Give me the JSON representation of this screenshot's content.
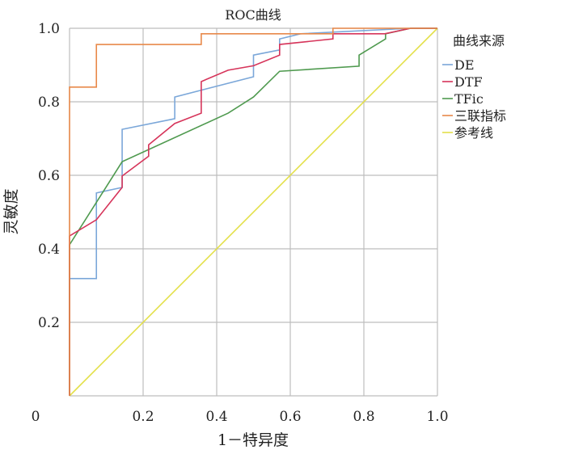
{
  "chart_data": {
    "type": "line",
    "title": "ROC曲线",
    "xlabel": "1－特异度",
    "ylabel": "灵敏度",
    "xlim": [
      0,
      1
    ],
    "ylim": [
      0,
      1
    ],
    "x_ticks": [
      "0",
      "0.2",
      "0.4",
      "0.6",
      "0.8",
      "1.0"
    ],
    "y_ticks": [
      "0.2",
      "0.4",
      "0.6",
      "0.8",
      "1.0"
    ],
    "grid": true,
    "legend_title": "曲线来源",
    "legend_position": "right",
    "series": [
      {
        "name": "DE",
        "color": "#7ba7d9",
        "points": [
          [
            0,
            0
          ],
          [
            0,
            0.319
          ],
          [
            0.073,
            0.319
          ],
          [
            0.073,
            0.552
          ],
          [
            0.143,
            0.567
          ],
          [
            0.143,
            0.725
          ],
          [
            0.286,
            0.754
          ],
          [
            0.286,
            0.813
          ],
          [
            0.5,
            0.868
          ],
          [
            0.5,
            0.927
          ],
          [
            0.571,
            0.941
          ],
          [
            0.571,
            0.971
          ],
          [
            0.628,
            0.985
          ],
          [
            0.927,
            1
          ],
          [
            1,
            1
          ]
        ]
      },
      {
        "name": "DTF",
        "color": "#d6345a",
        "points": [
          [
            0,
            0
          ],
          [
            0,
            0.435
          ],
          [
            0.073,
            0.479
          ],
          [
            0.143,
            0.567
          ],
          [
            0.143,
            0.598
          ],
          [
            0.215,
            0.652
          ],
          [
            0.215,
            0.683
          ],
          [
            0.286,
            0.741
          ],
          [
            0.358,
            0.769
          ],
          [
            0.358,
            0.855
          ],
          [
            0.431,
            0.886
          ],
          [
            0.5,
            0.898
          ],
          [
            0.571,
            0.927
          ],
          [
            0.571,
            0.956
          ],
          [
            0.716,
            0.971
          ],
          [
            0.716,
            0.985
          ],
          [
            0.857,
            0.985
          ],
          [
            0.927,
            1
          ],
          [
            1,
            1
          ]
        ]
      },
      {
        "name": "TFic",
        "color": "#4f9a4f",
        "points": [
          [
            0,
            0
          ],
          [
            0,
            0.411
          ],
          [
            0.143,
            0.637
          ],
          [
            0.431,
            0.769
          ],
          [
            0.5,
            0.813
          ],
          [
            0.571,
            0.883
          ],
          [
            0.787,
            0.897
          ],
          [
            0.787,
            0.927
          ],
          [
            0.859,
            0.971
          ],
          [
            0.859,
            0.985
          ],
          [
            0.927,
            1
          ],
          [
            1,
            1
          ]
        ]
      },
      {
        "name": "三联指标",
        "color": "#e8894a",
        "points": [
          [
            0,
            0
          ],
          [
            0,
            0.84
          ],
          [
            0.073,
            0.84
          ],
          [
            0.073,
            0.956
          ],
          [
            0.358,
            0.956
          ],
          [
            0.358,
            0.985
          ],
          [
            0.716,
            0.985
          ],
          [
            0.716,
            1
          ],
          [
            1,
            1
          ]
        ]
      },
      {
        "name": "参考线",
        "color": "#e3e04a",
        "points": [
          [
            0,
            0
          ],
          [
            1,
            1
          ]
        ]
      }
    ]
  }
}
